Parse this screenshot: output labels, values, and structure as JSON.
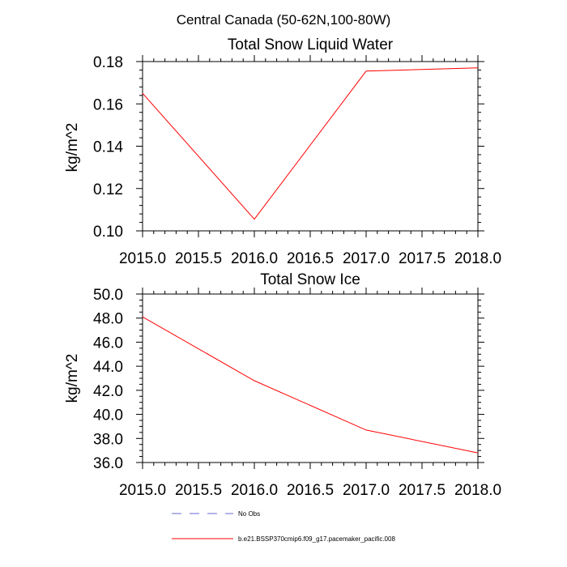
{
  "main_title": "Central Canada (50-62N,100-80W)",
  "chart_data": [
    {
      "type": "line",
      "title": "Total Snow Liquid Water",
      "xlabel": "",
      "ylabel": "kg/m^2",
      "xlim": [
        2015.0,
        2018.0
      ],
      "ylim": [
        0.1,
        0.18
      ],
      "x_ticks": [
        "2015.0",
        "2015.5",
        "2016.0",
        "2016.5",
        "2017.0",
        "2017.5",
        "2018.0"
      ],
      "y_ticks": [
        "0.10",
        "0.12",
        "0.14",
        "0.16",
        "0.18"
      ],
      "series": [
        {
          "name": "b.e21.BSSP370cmip6.f09_g17.pacemaker_pacific.008",
          "color": "#ff0000",
          "x": [
            2015,
            2016,
            2017,
            2018
          ],
          "y": [
            0.165,
            0.1055,
            0.1755,
            0.177
          ]
        }
      ]
    },
    {
      "type": "line",
      "title": "Total Snow Ice",
      "xlabel": "",
      "ylabel": "kg/m^2",
      "xlim": [
        2015.0,
        2018.0
      ],
      "ylim": [
        36.0,
        50.0
      ],
      "x_ticks": [
        "2015.0",
        "2015.5",
        "2016.0",
        "2016.5",
        "2017.0",
        "2017.5",
        "2018.0"
      ],
      "y_ticks": [
        "36.0",
        "38.0",
        "40.0",
        "42.0",
        "44.0",
        "46.0",
        "48.0",
        "50.0"
      ],
      "series": [
        {
          "name": "b.e21.BSSP370cmip6.f09_g17.pacemaker_pacific.008",
          "color": "#ff0000",
          "x": [
            2015,
            2016,
            2017,
            2018
          ],
          "y": [
            48.1,
            42.8,
            38.7,
            36.8
          ]
        }
      ]
    }
  ],
  "legend": [
    {
      "label": "No Obs",
      "color": "#6a6ad0",
      "style": "dashed"
    },
    {
      "label": "b.e21.BSSP370cmip6.f09_g17.pacemaker_pacific.008",
      "color": "#ff0000",
      "style": "solid"
    }
  ]
}
